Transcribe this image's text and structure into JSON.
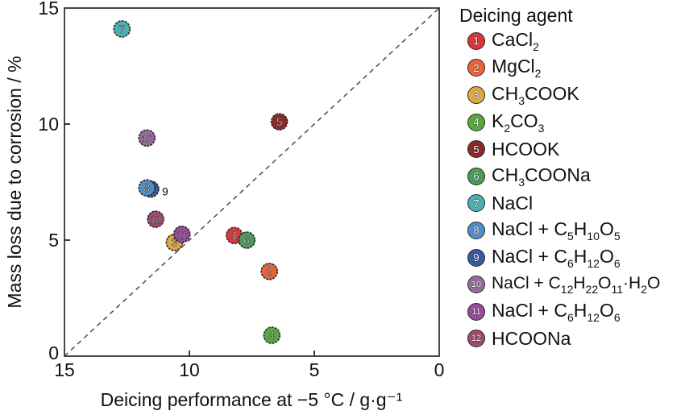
{
  "chart_data": {
    "type": "scatter",
    "title": "",
    "xlabel": "Deicing performance at −5 °C / g·g⁻¹",
    "ylabel": "Mass loss due to corrosion / %",
    "xlim": [
      15,
      0
    ],
    "ylim": [
      0,
      15
    ],
    "x_reversed": true,
    "x_ticks": [
      "15",
      "10",
      "5",
      "0"
    ],
    "y_ticks": [
      "0",
      "5",
      "10",
      "15"
    ],
    "x_tick_values": [
      15,
      10,
      5,
      0
    ],
    "y_tick_values": [
      0,
      5,
      10,
      15
    ],
    "grid": false,
    "reference_line": {
      "style": "dashed",
      "from": [
        15,
        0
      ],
      "to": [
        0,
        15
      ],
      "color": "#555555"
    },
    "legend": {
      "title": "Deicing agent",
      "placement": "right"
    },
    "series": [
      {
        "id": 1,
        "name": "CaCl2",
        "color": "#d8383a",
        "x": 8.2,
        "y": 5.2
      },
      {
        "id": 2,
        "name": "MgCl2",
        "color": "#e8643a",
        "x": 6.8,
        "y": 3.65
      },
      {
        "id": 3,
        "name": "CH3COOK",
        "color": "#e0a840",
        "x": 10.6,
        "y": 4.9
      },
      {
        "id": 4,
        "name": "K2CO3",
        "color": "#5aa83c",
        "x": 6.7,
        "y": 0.9
      },
      {
        "id": 5,
        "name": "HCOOK",
        "color": "#8a2a2a",
        "x": 6.4,
        "y": 10.1
      },
      {
        "id": 6,
        "name": "CH3COONa",
        "color": "#4e9a5a",
        "x": 7.7,
        "y": 5.0
      },
      {
        "id": 7,
        "name": "NaCl",
        "color": "#4fb0b4",
        "x": 12.7,
        "y": 14.1
      },
      {
        "id": 8,
        "name": "NaCl + C5H10O5",
        "color": "#4f8ec8",
        "x": 11.7,
        "y": 7.25
      },
      {
        "id": 9,
        "name": "NaCl + C6H12O6",
        "color": "#3a5a9e",
        "x": 11.55,
        "y": 7.2
      },
      {
        "id": 10,
        "name": "NaCl + C12H22O11·H2O",
        "color": "#9a6a9e",
        "x": 11.7,
        "y": 9.4
      },
      {
        "id": 11,
        "name": "NaCl + C6H12O6",
        "color": "#9a4a9a",
        "x": 10.3,
        "y": 5.25
      },
      {
        "id": 12,
        "name": "HCOONa",
        "color": "#a04a70",
        "x": 11.35,
        "y": 5.9
      }
    ],
    "point_labels": [
      {
        "text": "9",
        "near_id": 9
      }
    ]
  },
  "legend_items": [
    {
      "num": "1",
      "parts": [
        [
          "CaCl",
          ""
        ],
        [
          "2",
          "sub"
        ]
      ]
    },
    {
      "num": "2",
      "parts": [
        [
          "MgCl",
          ""
        ],
        [
          "2",
          "sub"
        ]
      ]
    },
    {
      "num": "3",
      "parts": [
        [
          "CH",
          ""
        ],
        [
          "3",
          "sub"
        ],
        [
          "COOK",
          ""
        ]
      ]
    },
    {
      "num": "4",
      "parts": [
        [
          "K",
          ""
        ],
        [
          "2",
          "sub"
        ],
        [
          "CO",
          ""
        ],
        [
          "3",
          "sub"
        ]
      ]
    },
    {
      "num": "5",
      "parts": [
        [
          "HCOOK",
          ""
        ]
      ]
    },
    {
      "num": "6",
      "parts": [
        [
          "CH",
          ""
        ],
        [
          "3",
          "sub"
        ],
        [
          "COONa",
          ""
        ]
      ]
    },
    {
      "num": "7",
      "parts": [
        [
          "NaCl",
          ""
        ]
      ]
    },
    {
      "num": "8",
      "parts": [
        [
          "NaCl + C",
          ""
        ],
        [
          "5",
          "sub"
        ],
        [
          "H",
          ""
        ],
        [
          "10",
          "sub"
        ],
        [
          "O",
          ""
        ],
        [
          "5",
          "sub"
        ]
      ]
    },
    {
      "num": "9",
      "parts": [
        [
          "NaCl + C",
          ""
        ],
        [
          "6",
          "sub"
        ],
        [
          "H",
          ""
        ],
        [
          "12",
          "sub"
        ],
        [
          "O",
          ""
        ],
        [
          "6",
          "sub"
        ]
      ]
    },
    {
      "num": "10",
      "parts": [
        [
          "NaCl + C",
          ""
        ],
        [
          "12",
          "sub"
        ],
        [
          "H",
          ""
        ],
        [
          "22",
          "sub"
        ],
        [
          "O",
          ""
        ],
        [
          "11",
          "sub"
        ],
        [
          "·H",
          ""
        ],
        [
          "2",
          "sub"
        ],
        [
          "O",
          ""
        ]
      ],
      "small": true
    },
    {
      "num": "11",
      "parts": [
        [
          "NaCl + C",
          ""
        ],
        [
          "6",
          "sub"
        ],
        [
          "H",
          ""
        ],
        [
          "12",
          "sub"
        ],
        [
          "O",
          ""
        ],
        [
          "6",
          "sub"
        ]
      ]
    },
    {
      "num": "12",
      "parts": [
        [
          "HCOONa",
          ""
        ]
      ]
    }
  ]
}
